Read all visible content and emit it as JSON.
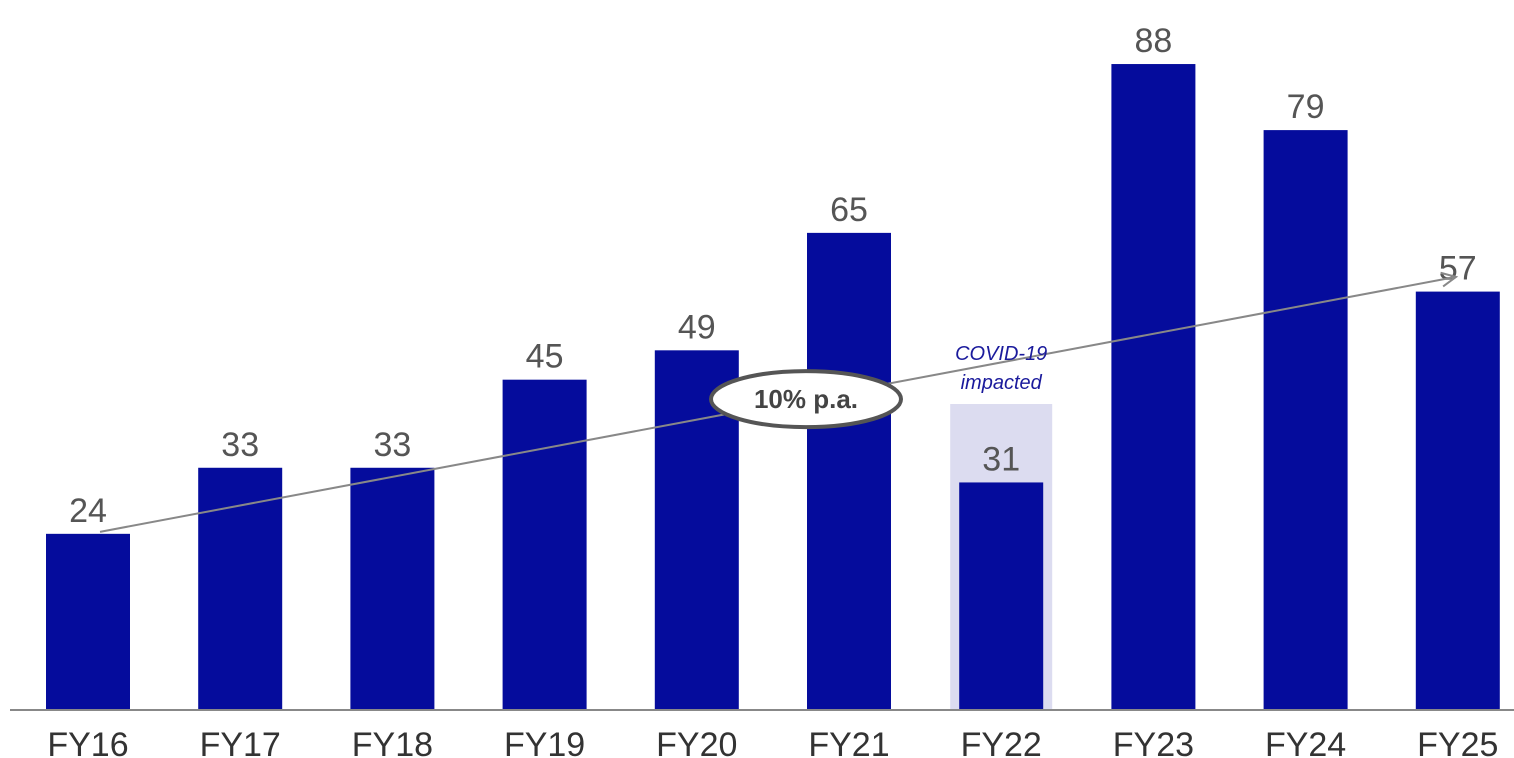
{
  "chart_data": {
    "type": "bar",
    "categories": [
      "FY16",
      "FY17",
      "FY18",
      "FY19",
      "FY20",
      "FY21",
      "FY22",
      "FY23",
      "FY24",
      "FY25"
    ],
    "values": [
      24,
      33,
      33,
      45,
      49,
      65,
      31,
      88,
      79,
      57
    ],
    "ylim": [
      0,
      94
    ],
    "grid": false,
    "bar_color": "#050C9C",
    "highlight": {
      "category": "FY22",
      "color": "#DCDCF0",
      "note_lines": [
        "COVID-19",
        "impacted"
      ],
      "note_color": "#1A1A9C"
    },
    "trend": {
      "label": "10% p.a.",
      "from_category": "FY16",
      "from_value": 24,
      "to_value": 59,
      "line_color": "#888888"
    }
  }
}
